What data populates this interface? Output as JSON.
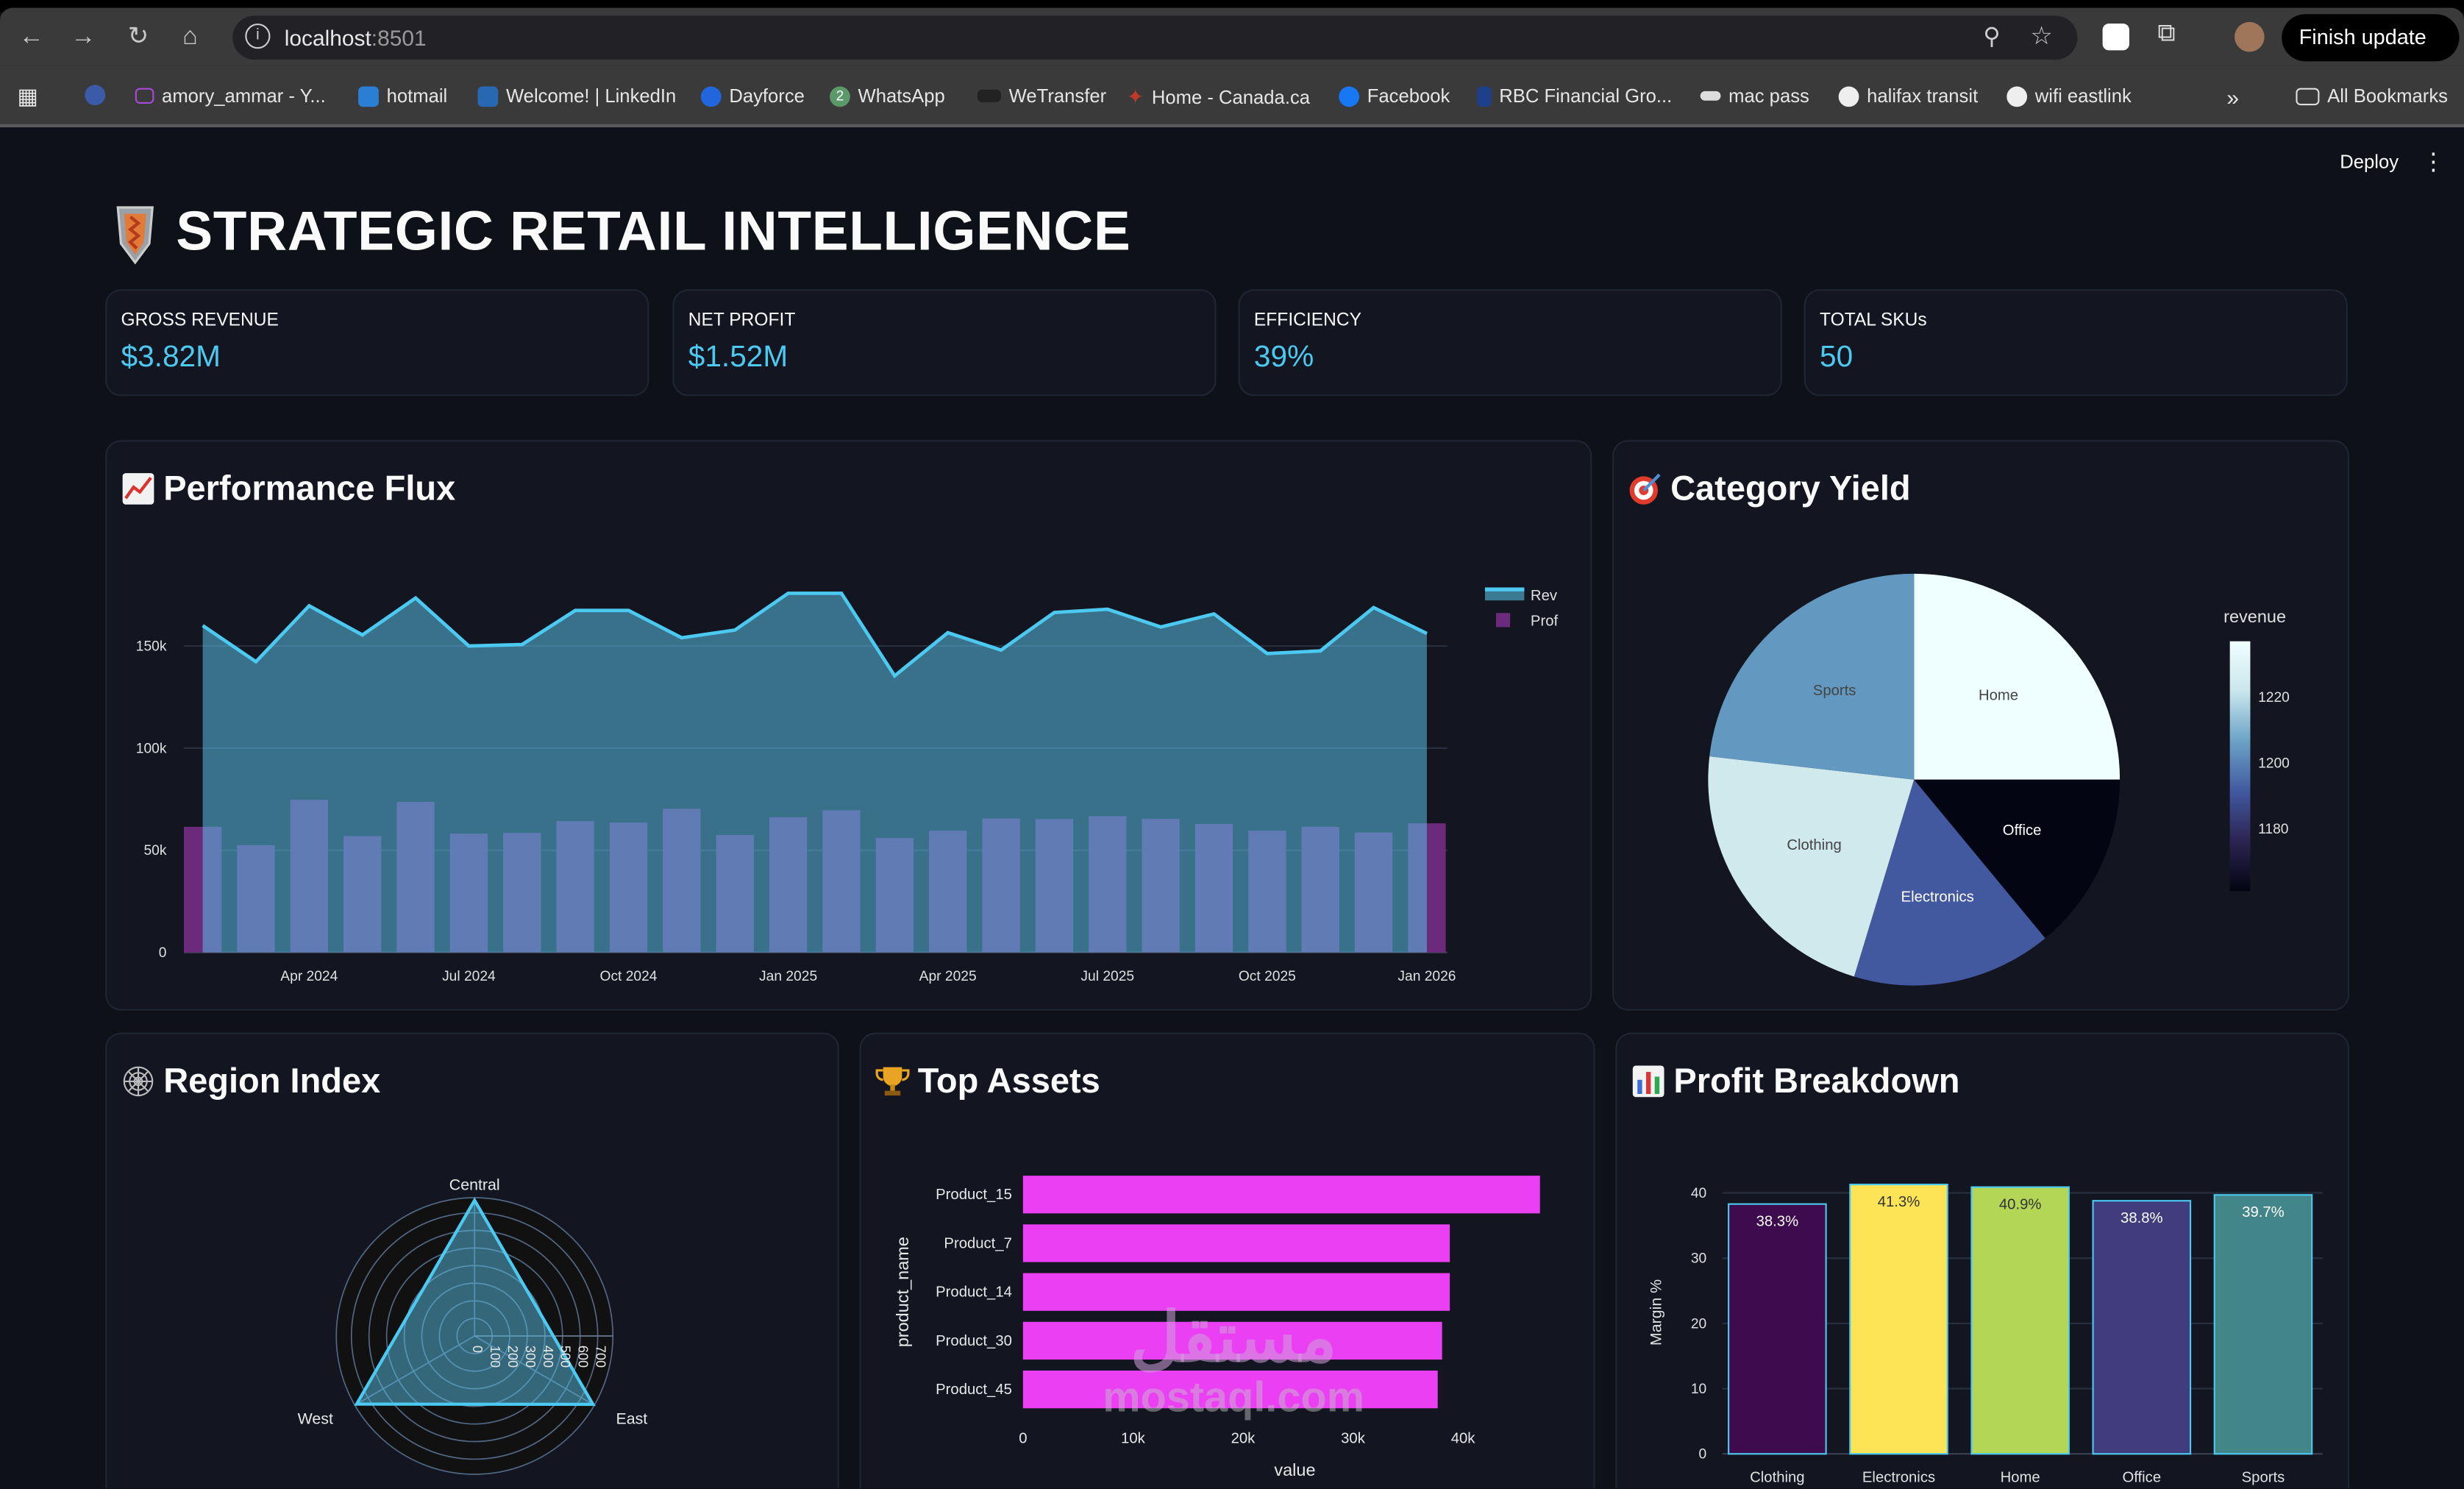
{
  "browser": {
    "url_host": "localhost",
    "url_port": ":8501",
    "finish_update": "Finish update",
    "bookmarks": [
      "amory_ammar - Y...",
      "hotmail",
      "Welcome! | LinkedIn",
      "Dayforce",
      "WhatsApp",
      "WeTransfer",
      "Home - Canada.ca",
      "Facebook",
      "RBC Financial Gro...",
      "mac pass",
      "halifax transit",
      "wifi eastlink"
    ],
    "all_bookmarks": "All Bookmarks",
    "whatsapp_badge": "2"
  },
  "app": {
    "deploy": "Deploy",
    "title": "STRATEGIC RETAIL INTELLIGENCE",
    "metrics": [
      {
        "label": "GROSS REVENUE",
        "value": "$3.82M"
      },
      {
        "label": "NET PROFIT",
        "value": "$1.52M"
      },
      {
        "label": "EFFICIENCY",
        "value": "39%"
      },
      {
        "label": "TOTAL SKUs",
        "value": "50"
      }
    ],
    "accent": "#4cc9f0",
    "watermark": {
      "arabic": "مستقل",
      "latin": "mostaql.com"
    }
  },
  "cards": {
    "performance": "Performance Flux",
    "category": "Category Yield",
    "region": "Region Index",
    "assets": "Top Assets",
    "profit": "Profit Breakdown"
  },
  "chart_data": [
    {
      "type": "area+bar",
      "x": [
        "2024-02",
        "2024-03",
        "2024-04",
        "2024-05",
        "2024-06",
        "2024-07",
        "2024-08",
        "2024-09",
        "2024-10",
        "2024-11",
        "2024-12",
        "2025-01",
        "2025-02",
        "2025-03",
        "2025-04",
        "2025-05",
        "2025-06",
        "2025-07",
        "2025-08",
        "2025-09",
        "2025-10",
        "2025-11",
        "2025-12",
        "2026-01"
      ],
      "x_ticks": [
        "Apr 2024",
        "Jul 2024",
        "Oct 2024",
        "Jan 2025",
        "Apr 2025",
        "Jul 2025",
        "Oct 2025",
        "Jan 2026"
      ],
      "y_ticks": [
        "0",
        "50k",
        "100k",
        "150k"
      ],
      "ylim": [
        0,
        185000
      ],
      "grid": true,
      "legend": "right",
      "series": [
        {
          "name": "Rev",
          "type": "area",
          "color": "#4cc9f0",
          "values": [
            160000,
            142300,
            169700,
            155400,
            173500,
            150000,
            150700,
            167400,
            167400,
            154000,
            157800,
            175800,
            175800,
            135400,
            156500,
            148000,
            166400,
            168000,
            159300,
            165700,
            146300,
            147600,
            168800,
            156100
          ]
        },
        {
          "name": "Prof",
          "type": "bar",
          "color": "#6b2a7c",
          "values": [
            61500,
            52500,
            74700,
            57000,
            73700,
            58200,
            58500,
            64300,
            63600,
            70300,
            57500,
            66200,
            69600,
            56000,
            59600,
            65600,
            65300,
            66700,
            65400,
            62900,
            59600,
            61500,
            58700,
            63200
          ]
        }
      ]
    },
    {
      "type": "pie",
      "labels": [
        "Home",
        "Office",
        "Electronics",
        "Clothing",
        "Sports"
      ],
      "shares": [
        25.0,
        14.0,
        15.7,
        22.1,
        23.2
      ],
      "revenue": [
        1236,
        1166,
        1195,
        1228,
        1210
      ],
      "colors": [
        "#effefe",
        "#030512",
        "#4259a0",
        "#d0e9ec",
        "#6399c0"
      ],
      "colorbar": {
        "title": "revenue",
        "ticks": [
          1180,
          1200,
          1220
        ],
        "range": [
          1161,
          1237
        ]
      }
    },
    {
      "type": "radar",
      "labels": [
        "Central",
        "East",
        "West"
      ],
      "values": [
        771,
        777,
        774
      ],
      "radial_ticks": [
        "0",
        "100",
        "200",
        "300",
        "400",
        "500",
        "600",
        "700"
      ],
      "range": [
        0,
        786
      ]
    },
    {
      "type": "bar",
      "orientation": "horizontal",
      "categories": [
        "Product_15",
        "Product_7",
        "Product_14",
        "Product_30",
        "Product_45"
      ],
      "values": [
        47000,
        38800,
        38800,
        38100,
        37700
      ],
      "xlabel": "value",
      "ylabel": "product_name",
      "x_ticks": [
        "0",
        "10k",
        "20k",
        "30k",
        "40k"
      ],
      "color": "#ea3ff2"
    },
    {
      "type": "bar",
      "categories": [
        "Clothing",
        "Electronics",
        "Home",
        "Office",
        "Sports"
      ],
      "values": [
        38.3,
        41.3,
        40.9,
        38.8,
        39.7
      ],
      "labels": [
        "38.3%",
        "41.3%",
        "40.9%",
        "38.8%",
        "39.7%"
      ],
      "colors": [
        "#3d0b4e",
        "#fde457",
        "#b3d657",
        "#413c7b",
        "#43868a"
      ],
      "ylabel": "Margin %",
      "y_ticks": [
        "0",
        "10",
        "20",
        "30",
        "40"
      ],
      "ylim": [
        0,
        43
      ]
    }
  ]
}
